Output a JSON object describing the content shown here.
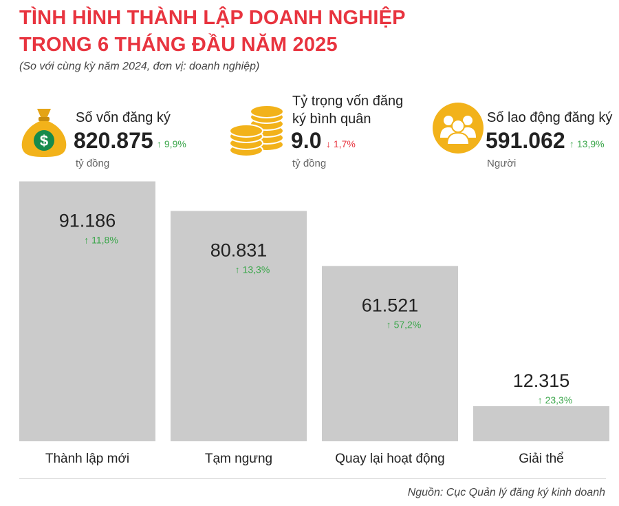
{
  "header": {
    "title_line1": "TÌNH HÌNH THÀNH LẬP DOANH NGHIỆP",
    "title_line2": "TRONG 6 THÁNG ĐẦU NĂM 2025",
    "subtitle": "(So với cùng kỳ năm 2024, đơn vị: doanh nghiệp)"
  },
  "stats": [
    {
      "label": "Số vốn đăng ký",
      "value": "820.875",
      "change": "9,9%",
      "direction": "up",
      "unit": "tỷ đồng",
      "icon": "money-bag-icon"
    },
    {
      "label_line1": "Tỷ trọng vốn đăng",
      "label_line2": "ký bình quân",
      "value": "9.0",
      "change": "1,7%",
      "direction": "down",
      "unit": "tỷ đồng",
      "icon": "coins-icon"
    },
    {
      "label": "Số lao động đăng ký",
      "value": "591.062",
      "change": "13,9%",
      "direction": "up",
      "unit": "Người",
      "icon": "people-icon"
    }
  ],
  "arrows": {
    "up": "↑",
    "down": "↓"
  },
  "colors": {
    "title": "#e8343f",
    "bar": "#cbcbcb",
    "up": "#3aa64a",
    "down": "#e8343f",
    "icon": "#f2b21a"
  },
  "chart_data": {
    "type": "bar",
    "categories": [
      "Thành lập mới",
      "Tạm ngưng",
      "Quay lại hoạt động",
      "Giải thể"
    ],
    "values": [
      91186,
      80831,
      61521,
      12315
    ],
    "value_labels": [
      "91.186",
      "80.831",
      "61.521",
      "12.315"
    ],
    "changes": [
      "11,8%",
      "13,3%",
      "57,2%",
      "23,3%"
    ],
    "ylim": [
      0,
      100000
    ],
    "grid": false
  },
  "footer": {
    "source": "Nguồn: Cục Quản lý đăng ký kinh doanh"
  }
}
